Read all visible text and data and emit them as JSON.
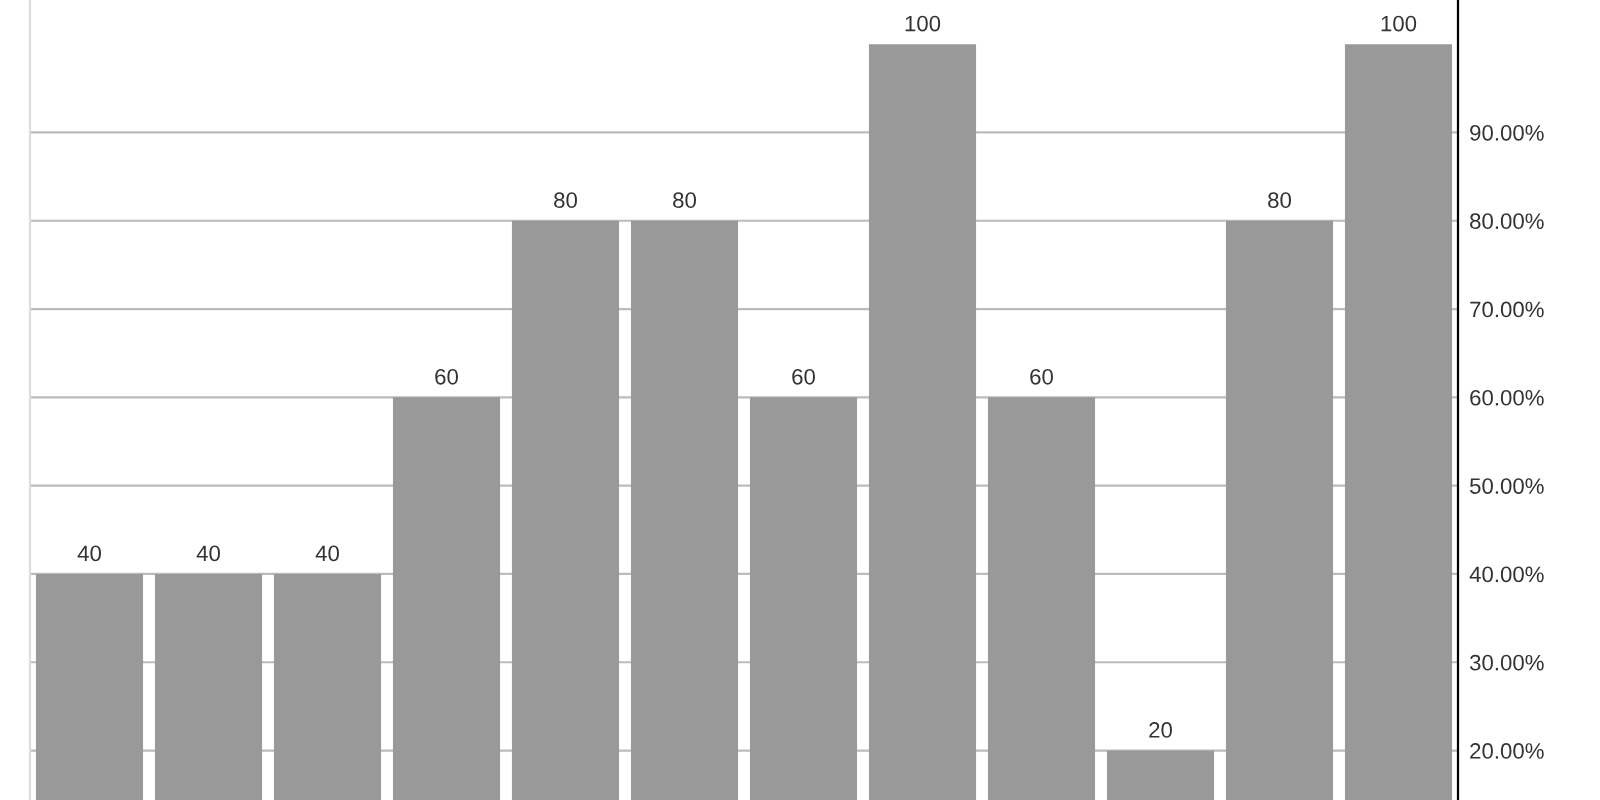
{
  "chart_data": {
    "type": "bar",
    "categories": [
      null,
      null,
      null,
      null,
      null,
      null,
      null,
      null,
      null,
      null,
      null,
      null
    ],
    "values": [
      40,
      40,
      40,
      60,
      80,
      80,
      60,
      100,
      60,
      20,
      80,
      100
    ],
    "color": "#999999",
    "ylim": [
      14.4,
      105
    ],
    "yticks": [
      {
        "value": 20,
        "label": "20.00%"
      },
      {
        "value": 30,
        "label": "30.00%"
      },
      {
        "value": 40,
        "label": "40.00%"
      },
      {
        "value": 50,
        "label": "50.00%"
      },
      {
        "value": 60,
        "label": "60.00%"
      },
      {
        "value": 70,
        "label": "70.00%"
      },
      {
        "value": 80,
        "label": "80.00%"
      },
      {
        "value": 90,
        "label": "90.00%"
      }
    ],
    "grid": "y",
    "data_labels": true
  }
}
